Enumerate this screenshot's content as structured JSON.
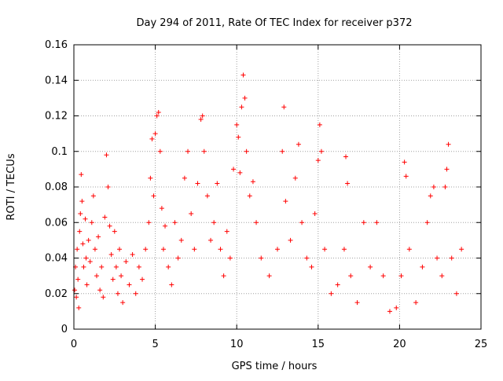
{
  "chart_data": {
    "type": "scatter",
    "title": "Day 294 of 2011, Rate Of TEC Index for receiver p372",
    "xlabel": "GPS time / hours",
    "ylabel": "ROTI / TECUs",
    "xlim": [
      0,
      24
    ],
    "ylim": [
      0,
      0.16
    ],
    "xticks": [
      0,
      5,
      10,
      15,
      20,
      25
    ],
    "xtick_labels": [
      "0",
      "5",
      "10",
      "15",
      "20",
      "25"
    ],
    "yticks": [
      0,
      0.02,
      0.04,
      0.06,
      0.08,
      0.1,
      0.12,
      0.14,
      0.16
    ],
    "ytick_labels": [
      "0",
      "0.02",
      "0.04",
      "0.06",
      "0.08",
      "0.1",
      "0.12",
      "0.14",
      "0.16"
    ],
    "grid": true,
    "marker": "+",
    "colors": {
      "series": "#ff0000",
      "grid": "#a0a0a0",
      "axes": "#000000"
    },
    "series": [
      {
        "points": [
          [
            0.05,
            0.022
          ],
          [
            0.1,
            0.035
          ],
          [
            0.15,
            0.018
          ],
          [
            0.2,
            0.045
          ],
          [
            0.25,
            0.028
          ],
          [
            0.3,
            0.012
          ],
          [
            0.35,
            0.055
          ],
          [
            0.4,
            0.065
          ],
          [
            0.45,
            0.087
          ],
          [
            0.5,
            0.072
          ],
          [
            0.55,
            0.048
          ],
          [
            0.6,
            0.035
          ],
          [
            0.7,
            0.062
          ],
          [
            0.75,
            0.04
          ],
          [
            0.8,
            0.025
          ],
          [
            0.9,
            0.05
          ],
          [
            1.0,
            0.038
          ],
          [
            1.1,
            0.06
          ],
          [
            1.2,
            0.075
          ],
          [
            1.3,
            0.045
          ],
          [
            1.4,
            0.03
          ],
          [
            1.5,
            0.052
          ],
          [
            1.6,
            0.022
          ],
          [
            1.7,
            0.035
          ],
          [
            1.8,
            0.018
          ],
          [
            1.9,
            0.063
          ],
          [
            2.0,
            0.098
          ],
          [
            2.1,
            0.08
          ],
          [
            2.2,
            0.058
          ],
          [
            2.3,
            0.042
          ],
          [
            2.4,
            0.028
          ],
          [
            2.5,
            0.055
          ],
          [
            2.6,
            0.035
          ],
          [
            2.7,
            0.02
          ],
          [
            2.8,
            0.045
          ],
          [
            2.9,
            0.03
          ],
          [
            3.0,
            0.015
          ],
          [
            3.2,
            0.038
          ],
          [
            3.4,
            0.025
          ],
          [
            3.6,
            0.042
          ],
          [
            3.8,
            0.02
          ],
          [
            4.0,
            0.035
          ],
          [
            4.2,
            0.028
          ],
          [
            4.4,
            0.045
          ],
          [
            4.6,
            0.06
          ],
          [
            4.7,
            0.085
          ],
          [
            4.8,
            0.107
          ],
          [
            4.9,
            0.075
          ],
          [
            5.0,
            0.11
          ],
          [
            5.1,
            0.12
          ],
          [
            5.2,
            0.122
          ],
          [
            5.3,
            0.1
          ],
          [
            5.4,
            0.068
          ],
          [
            5.5,
            0.045
          ],
          [
            5.6,
            0.058
          ],
          [
            5.8,
            0.035
          ],
          [
            6.0,
            0.025
          ],
          [
            6.2,
            0.06
          ],
          [
            6.4,
            0.04
          ],
          [
            6.6,
            0.05
          ],
          [
            6.8,
            0.085
          ],
          [
            7.0,
            0.1
          ],
          [
            7.2,
            0.065
          ],
          [
            7.4,
            0.045
          ],
          [
            7.6,
            0.082
          ],
          [
            7.8,
            0.118
          ],
          [
            7.9,
            0.12
          ],
          [
            8.0,
            0.1
          ],
          [
            8.2,
            0.075
          ],
          [
            8.4,
            0.05
          ],
          [
            8.6,
            0.06
          ],
          [
            8.8,
            0.082
          ],
          [
            9.0,
            0.045
          ],
          [
            9.2,
            0.03
          ],
          [
            9.4,
            0.055
          ],
          [
            9.6,
            0.04
          ],
          [
            9.8,
            0.09
          ],
          [
            10.0,
            0.115
          ],
          [
            10.1,
            0.108
          ],
          [
            10.2,
            0.088
          ],
          [
            10.3,
            0.125
          ],
          [
            10.4,
            0.143
          ],
          [
            10.5,
            0.13
          ],
          [
            10.6,
            0.1
          ],
          [
            10.8,
            0.075
          ],
          [
            11.0,
            0.083
          ],
          [
            11.2,
            0.06
          ],
          [
            11.5,
            0.04
          ],
          [
            12.0,
            0.03
          ],
          [
            12.5,
            0.045
          ],
          [
            12.8,
            0.1
          ],
          [
            12.9,
            0.125
          ],
          [
            13.0,
            0.072
          ],
          [
            13.3,
            0.05
          ],
          [
            13.6,
            0.085
          ],
          [
            13.8,
            0.104
          ],
          [
            14.0,
            0.06
          ],
          [
            14.3,
            0.04
          ],
          [
            14.6,
            0.035
          ],
          [
            14.8,
            0.065
          ],
          [
            15.0,
            0.095
          ],
          [
            15.1,
            0.115
          ],
          [
            15.2,
            0.1
          ],
          [
            15.4,
            0.045
          ],
          [
            15.8,
            0.02
          ],
          [
            16.2,
            0.025
          ],
          [
            16.6,
            0.045
          ],
          [
            16.7,
            0.097
          ],
          [
            16.8,
            0.082
          ],
          [
            17.0,
            0.03
          ],
          [
            17.4,
            0.015
          ],
          [
            17.8,
            0.06
          ],
          [
            18.2,
            0.035
          ],
          [
            18.6,
            0.06
          ],
          [
            19.0,
            0.03
          ],
          [
            19.4,
            0.01
          ],
          [
            19.8,
            0.012
          ],
          [
            20.1,
            0.03
          ],
          [
            20.3,
            0.094
          ],
          [
            20.4,
            0.086
          ],
          [
            20.6,
            0.045
          ],
          [
            21.0,
            0.015
          ],
          [
            21.4,
            0.035
          ],
          [
            21.7,
            0.06
          ],
          [
            21.9,
            0.075
          ],
          [
            22.1,
            0.08
          ],
          [
            22.3,
            0.04
          ],
          [
            22.6,
            0.03
          ],
          [
            22.8,
            0.08
          ],
          [
            22.9,
            0.09
          ],
          [
            23.0,
            0.104
          ],
          [
            23.2,
            0.04
          ],
          [
            23.5,
            0.02
          ],
          [
            23.8,
            0.045
          ]
        ]
      }
    ]
  }
}
